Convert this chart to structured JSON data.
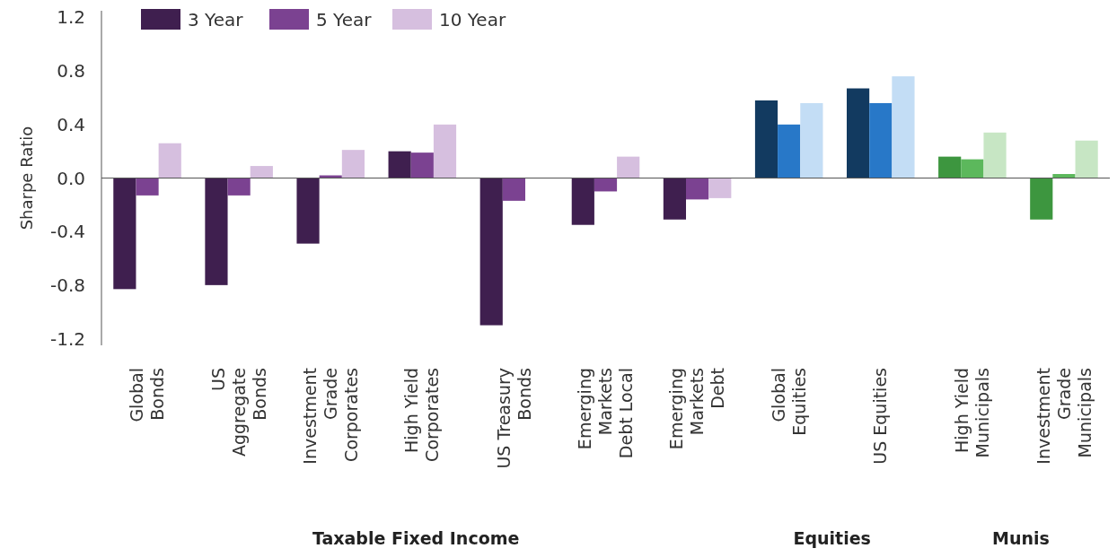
{
  "chart_data": {
    "type": "bar",
    "ylabel": "Sharpe Ratio",
    "categories": [
      "Global Bonds",
      "US Aggregate Bonds",
      "Investment Grade Corporates",
      "High Yield Corporates",
      "US Treasury Bonds",
      "Emerging Markets Debt Local",
      "Emerging Markets Debt",
      "Global Equities",
      "US Equities",
      "High Yield Municipals",
      "Investment Grade Municipals"
    ],
    "series": [
      {
        "name": "3 Year",
        "color": "#3f1f4f",
        "colors": [
          "#3f1f4f",
          "#3f1f4f",
          "#3f1f4f",
          "#3f1f4f",
          "#3f1f4f",
          "#3f1f4f",
          "#3f1f4f",
          "#123a60",
          "#123a60",
          "#3d963f",
          "#3d963f"
        ],
        "values": [
          -0.83,
          -0.8,
          -0.49,
          0.2,
          -1.1,
          -0.35,
          -0.31,
          0.58,
          0.67,
          0.16,
          -0.31
        ]
      },
      {
        "name": "5 Year",
        "color": "#7b4291",
        "colors": [
          "#7b4291",
          "#7b4291",
          "#7b4291",
          "#7b4291",
          "#7b4291",
          "#7b4291",
          "#7b4291",
          "#2878c8",
          "#2878c8",
          "#5cb85c",
          "#5cb85c"
        ],
        "values": [
          -0.13,
          -0.13,
          0.02,
          0.19,
          -0.17,
          -0.1,
          -0.16,
          0.4,
          0.56,
          0.14,
          0.03
        ]
      },
      {
        "name": "10 Year",
        "color": "#d6bfdf",
        "colors": [
          "#d6bfdf",
          "#d6bfdf",
          "#d6bfdf",
          "#d6bfdf",
          "#d6bfdf",
          "#d6bfdf",
          "#d6bfdf",
          "#c3ddf5",
          "#c3ddf5",
          "#c7e6c4",
          "#c7e6c4"
        ],
        "values": [
          0.26,
          0.09,
          0.21,
          0.4,
          null,
          0.16,
          -0.15,
          0.56,
          0.76,
          0.34,
          0.28
        ]
      }
    ],
    "ylim": [
      -1.25,
      1.25
    ],
    "yticks": [
      {
        "value": -1.2,
        "label": "-1.2"
      },
      {
        "value": -0.8,
        "label": "-0.8"
      },
      {
        "value": -0.4,
        "label": "-0.4"
      },
      {
        "value": 0,
        "label": "0.0"
      },
      {
        "value": 0.4,
        "label": "0.4"
      },
      {
        "value": 0.8,
        "label": "0.8"
      },
      {
        "value": 1.2,
        "label": "1.2"
      }
    ],
    "legend": "top",
    "annotations": [
      "Taxable Fixed Income",
      "Equities",
      "Munis"
    ]
  }
}
